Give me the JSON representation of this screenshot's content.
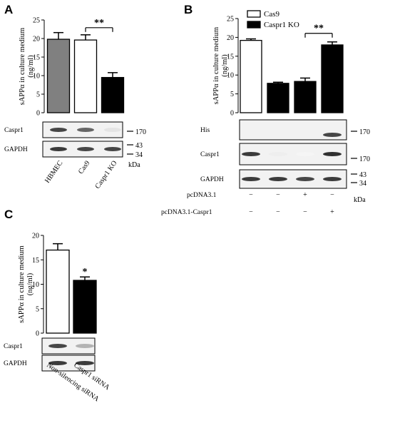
{
  "chart_data": [
    {
      "panel": "A",
      "type": "bar",
      "ylabel": "sAPPα in culture medium\n(ng/ml)",
      "ylim": [
        0,
        25
      ],
      "yticks": [
        "0",
        "5",
        "10",
        "15",
        "20",
        "25"
      ],
      "categories": [
        "HBMEC",
        "Cas9",
        "Caspr1 KO"
      ],
      "values": [
        19.8,
        19.6,
        9.5
      ],
      "errors": [
        1.8,
        1.4,
        1.3
      ],
      "colors": [
        "#808080",
        "#ffffff",
        "#000000"
      ],
      "significance": [
        {
          "from": 1,
          "to": 2,
          "label": "**"
        }
      ],
      "blots": [
        {
          "label": "Caspr1",
          "marker": "170",
          "bands": [
            0.85,
            0.7,
            0.12
          ]
        },
        {
          "label": "GAPDH",
          "marker": "43",
          "marker2": "34",
          "bands": [
            0.9,
            0.85,
            0.85
          ]
        }
      ],
      "unit": "kDa"
    },
    {
      "panel": "B",
      "type": "bar",
      "ylabel": "sAPPα in culture medium\n(ng/ml)",
      "ylim": [
        0,
        25
      ],
      "yticks": [
        "0",
        "5",
        "10",
        "15",
        "20",
        "25"
      ],
      "legend": [
        "Cas9",
        "Caspr1 KO"
      ],
      "values": [
        19.2,
        7.8,
        8.3,
        18.0
      ],
      "errors": [
        0.4,
        0.3,
        0.9,
        0.8
      ],
      "colors": [
        "#ffffff",
        "#000000",
        "#000000",
        "#000000"
      ],
      "significance": [
        {
          "from": 2,
          "to": 3,
          "label": "**"
        }
      ],
      "blots": [
        {
          "label": "His",
          "marker": "170",
          "bands": [
            0,
            0,
            0,
            0.85
          ]
        },
        {
          "label": "Caspr1",
          "marker": "170",
          "bands": [
            0.9,
            0.08,
            0.05,
            0.95
          ]
        },
        {
          "label": "GAPDH",
          "marker": "43",
          "marker2": "34",
          "bands": [
            0.9,
            0.9,
            0.85,
            0.9
          ]
        }
      ],
      "treatments": [
        {
          "label": "pcDNA3.1",
          "signs": [
            "−",
            "−",
            "+",
            "−"
          ]
        },
        {
          "label": "pcDNA3.1-Caspr1",
          "signs": [
            "−",
            "−",
            "−",
            "+"
          ]
        }
      ],
      "unit": "kDa"
    },
    {
      "panel": "C",
      "type": "bar",
      "ylabel": "sAPPα in culture medium\n(ng/ml)",
      "ylim": [
        0,
        20
      ],
      "yticks": [
        "0",
        "5",
        "10",
        "15",
        "20"
      ],
      "categories": [
        "Non-silencing siRNA",
        "Caspr1 siRNA"
      ],
      "values": [
        17.0,
        10.8
      ],
      "errors": [
        1.3,
        0.7
      ],
      "colors": [
        "#ffffff",
        "#000000"
      ],
      "significance": [
        {
          "on": 1,
          "label": "*"
        }
      ],
      "blots": [
        {
          "label": "Caspr1",
          "bands": [
            0.85,
            0.35
          ]
        },
        {
          "label": "GAPDH",
          "bands": [
            0.9,
            0.9
          ]
        }
      ]
    }
  ]
}
